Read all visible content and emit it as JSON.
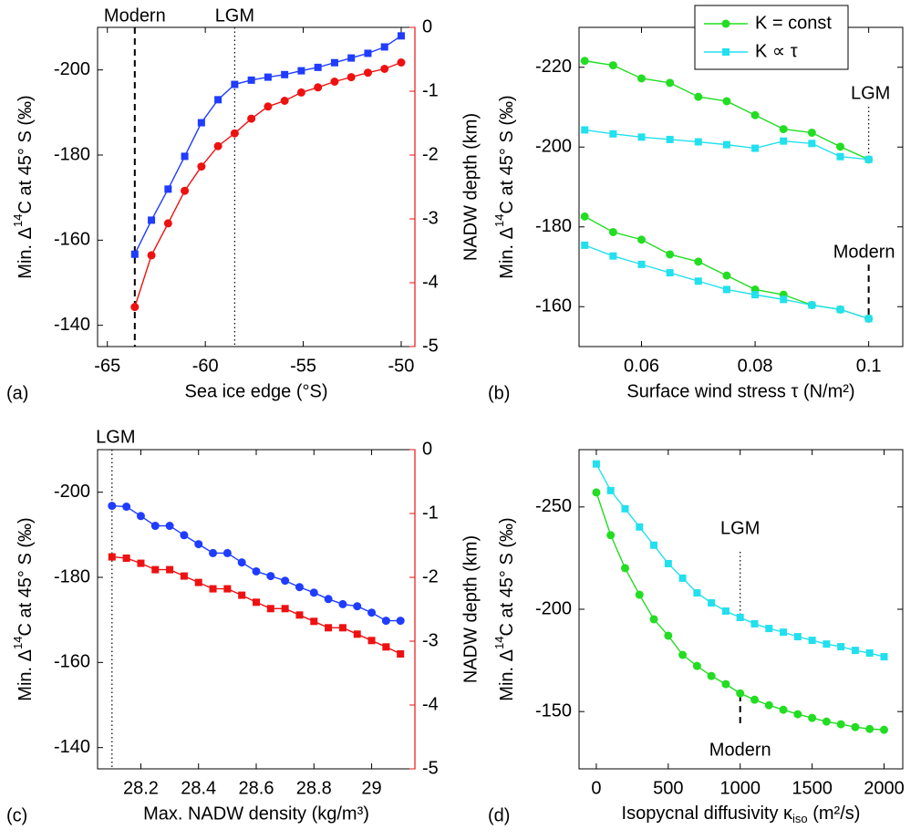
{
  "chart_data": [
    {
      "type": "line",
      "panel_label": "(a)",
      "xlabel": "Sea ice edge (°S)",
      "ylabel": {
        "pre": "Min. Δ",
        "sup": "14",
        "post": "C at 45° S (‰)"
      },
      "y2label": "NADW depth (km)",
      "ycolor": "#1f3cff",
      "y2color": "#ee1111",
      "xlim": [
        -65.5,
        -49.3
      ],
      "xticks": [
        -65,
        -60,
        -55,
        -50
      ],
      "ylim": [
        -135,
        -210
      ],
      "yticks": [
        -140,
        -160,
        -180,
        -200
      ],
      "y2lim": [
        -5,
        0
      ],
      "y2ticks": [
        -5,
        -4,
        -3,
        -2,
        -1,
        0
      ],
      "series": [
        {
          "color": "#1f3cff",
          "marker": "square",
          "x": [
            -63.6,
            -62.75,
            -61.9,
            -61.05,
            -60.2,
            -59.35,
            -58.5,
            -57.65,
            -56.8,
            -55.95,
            -55.1,
            -54.25,
            -53.4,
            -52.55,
            -51.7,
            -50.85,
            -50
          ],
          "values": [
            -156.7,
            -164.7,
            -172,
            -179.7,
            -187.6,
            -193,
            -196.6,
            -197.6,
            -198.3,
            -198.9,
            -199.8,
            -200.6,
            -201.7,
            -202.8,
            -203.9,
            -205.4,
            -208
          ]
        },
        {
          "color": "#ee1111",
          "marker": "circle",
          "axis": "y2",
          "x": [
            -63.6,
            -62.75,
            -61.9,
            -61.05,
            -60.2,
            -59.35,
            -58.5,
            -57.65,
            -56.8,
            -55.95,
            -55.1,
            -54.25,
            -53.4,
            -52.55,
            -51.7,
            -50.85,
            -50
          ],
          "values": [
            -4.38,
            -3.57,
            -3.07,
            -2.56,
            -2.18,
            -1.86,
            -1.66,
            -1.43,
            -1.24,
            -1.15,
            -1.02,
            -0.94,
            -0.85,
            -0.78,
            -0.71,
            -0.65,
            -0.55
          ]
        }
      ],
      "annotations": [
        {
          "text": "Modern",
          "x": -63.6,
          "style": "dashed"
        },
        {
          "text": "LGM",
          "x": -58.5,
          "style": "dotted"
        }
      ]
    },
    {
      "type": "line",
      "panel_label": "(b)",
      "xlabel": "Surface wind stress τ (N/m²)",
      "ylabel": {
        "pre": "Min. Δ",
        "sup": "14",
        "post": "C at 45° S (‰)"
      },
      "xlim": [
        0.049,
        0.106
      ],
      "xticks": [
        0.06,
        0.08,
        0.1
      ],
      "ylim": [
        -150,
        -230
      ],
      "yticks": [
        -160,
        -180,
        -200,
        -220
      ],
      "legend": "upper-right",
      "series": [
        {
          "name": "K = const",
          "color": "#22dd22",
          "marker": "circle",
          "x": [
            0.05,
            0.055,
            0.06,
            0.065,
            0.07,
            0.075,
            0.08,
            0.085,
            0.09,
            0.095,
            0.1
          ],
          "curves": [
            {
              "values": [
                -221.6,
                -220.5,
                -217.2,
                -216.1,
                -212.6,
                -211.5,
                -208,
                -204.5,
                -203.6,
                -200.1,
                -196.9
              ]
            },
            {
              "values": [
                -182.6,
                -178.7,
                -176.8,
                -173.1,
                -171.3,
                -167.8,
                -164.3,
                -163,
                -160.4,
                -159.3,
                -157
              ]
            }
          ]
        },
        {
          "name": "K ∝ τ",
          "color": "#22e0ee",
          "marker": "square",
          "x": [
            0.05,
            0.055,
            0.06,
            0.065,
            0.07,
            0.075,
            0.08,
            0.085,
            0.09,
            0.095,
            0.1
          ],
          "curves": [
            {
              "values": [
                -204.3,
                -203.3,
                -202.5,
                -201.9,
                -201.3,
                -200.6,
                -199.7,
                -201.5,
                -200.9,
                -197.6,
                -196.9
              ]
            },
            {
              "values": [
                -175.4,
                -172.7,
                -170.6,
                -168.5,
                -166.4,
                -164.3,
                -163,
                -161.8,
                -160.4,
                -159.3,
                -157
              ]
            }
          ]
        }
      ],
      "annotations": [
        {
          "text": "LGM",
          "x": 0.1,
          "style": "dotted"
        },
        {
          "text": "Modern",
          "x": 0.1,
          "style": "dashed"
        }
      ]
    },
    {
      "type": "line",
      "panel_label": "(c)",
      "xlabel": "Max. NADW density (kg/m³)",
      "ylabel": {
        "pre": "Min. Δ",
        "sup": "14",
        "post": "C at 45° S (‰)"
      },
      "y2label": "NADW depth (km)",
      "ycolor": "#1f3cff",
      "y2color": "#ee1111",
      "xlim": [
        28.05,
        29.15
      ],
      "xticks": [
        28.2,
        28.4,
        28.6,
        28.8,
        29
      ],
      "ylim": [
        -135,
        -210
      ],
      "yticks": [
        -140,
        -160,
        -180,
        -200
      ],
      "y2lim": [
        -5,
        0
      ],
      "y2ticks": [
        -5,
        -4,
        -3,
        -2,
        -1,
        0
      ],
      "series": [
        {
          "color": "#1f3cff",
          "marker": "circle",
          "x": [
            28.1,
            28.15,
            28.2,
            28.25,
            28.3,
            28.35,
            28.4,
            28.45,
            28.5,
            28.55,
            28.6,
            28.65,
            28.7,
            28.75,
            28.8,
            28.85,
            28.9,
            28.95,
            29,
            29.05,
            29.1
          ],
          "values": [
            -196.8,
            -196.6,
            -194.4,
            -192.1,
            -192.1,
            -189.9,
            -187.8,
            -185.7,
            -185.7,
            -183.5,
            -181.4,
            -180.3,
            -179.2,
            -177.7,
            -176.4,
            -174.9,
            -173.7,
            -173.2,
            -171.7,
            -169.8,
            -169.8
          ]
        },
        {
          "color": "#ee1111",
          "marker": "square",
          "axis": "y2",
          "x": [
            28.1,
            28.15,
            28.2,
            28.25,
            28.3,
            28.35,
            28.4,
            28.45,
            28.5,
            28.55,
            28.6,
            28.65,
            28.7,
            28.75,
            28.8,
            28.85,
            28.9,
            28.95,
            29,
            29.05,
            29.1
          ],
          "values": [
            -1.68,
            -1.7,
            -1.78,
            -1.88,
            -1.88,
            -1.98,
            -2.08,
            -2.18,
            -2.18,
            -2.28,
            -2.39,
            -2.49,
            -2.49,
            -2.59,
            -2.69,
            -2.79,
            -2.79,
            -2.89,
            -2.99,
            -3.09,
            -3.2
          ]
        }
      ],
      "annotations": [
        {
          "text": "LGM",
          "x": 28.1,
          "style": "dotted"
        }
      ]
    },
    {
      "type": "line",
      "panel_label": "(d)",
      "xlabel": {
        "pre": "Isopycnal diffusivity κ",
        "sub": "iso",
        "post": " (m²/s)"
      },
      "ylabel": {
        "pre": "Min. Δ",
        "sup": "14",
        "post": "C at 45° S (‰)"
      },
      "xlim": [
        -120,
        2130
      ],
      "xticks": [
        0,
        500,
        1000,
        1500,
        2000
      ],
      "ylim": [
        -122,
        -278
      ],
      "yticks": [
        -150,
        -200,
        -250
      ],
      "series": [
        {
          "color": "#22e0ee",
          "marker": "square",
          "x": [
            0,
            100,
            200,
            300,
            400,
            500,
            600,
            700,
            800,
            900,
            1000,
            1100,
            1200,
            1300,
            1400,
            1500,
            1600,
            1700,
            1800,
            1900,
            2000
          ],
          "values": [
            -271,
            -258,
            -249.1,
            -240.2,
            -231.3,
            -222.3,
            -215.2,
            -208,
            -203.1,
            -199.1,
            -196,
            -192.9,
            -190.6,
            -188.8,
            -186.6,
            -184.8,
            -183,
            -181.7,
            -179.9,
            -178.6,
            -176.8
          ]
        },
        {
          "color": "#22dd22",
          "marker": "circle",
          "x": [
            0,
            100,
            200,
            300,
            400,
            500,
            600,
            700,
            800,
            900,
            1000,
            1100,
            1200,
            1300,
            1400,
            1500,
            1600,
            1700,
            1800,
            1900,
            2000
          ],
          "values": [
            -257.1,
            -236.2,
            -220.1,
            -207.1,
            -195.1,
            -187.1,
            -177.7,
            -172.3,
            -167.4,
            -163.4,
            -158.9,
            -155.8,
            -153.1,
            -150.9,
            -148.7,
            -146.9,
            -145.1,
            -143.8,
            -142.4,
            -141.5,
            -141.1
          ]
        }
      ],
      "annotations": [
        {
          "text": "LGM",
          "x": 1000,
          "style": "dotted"
        },
        {
          "text": "Modern",
          "x": 1000,
          "style": "dashed"
        }
      ]
    }
  ]
}
